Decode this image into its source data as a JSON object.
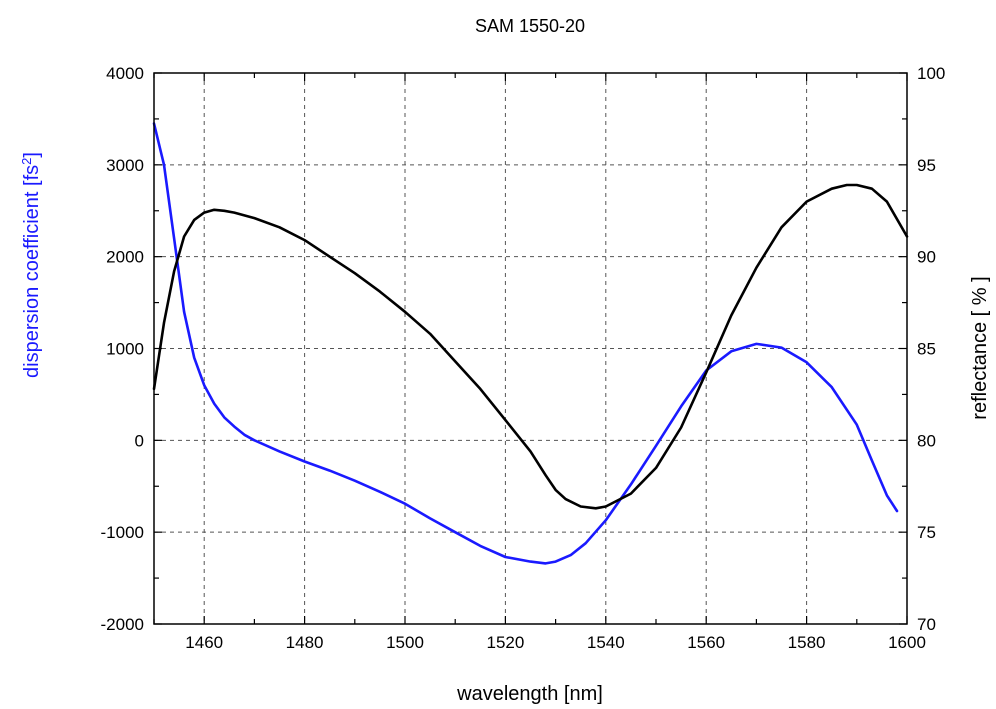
{
  "chart_data": {
    "type": "line",
    "title": "SAM 1550-20",
    "xlabel": "wavelength [nm]",
    "ylabel_left": "dispersion coefficient [fs",
    "ylabel_left_sup": "2",
    "ylabel_left_end": "]",
    "ylabel_right": "reflectance [ % ]",
    "xlim": [
      1450,
      1600
    ],
    "ylim_left": [
      -2000,
      4000
    ],
    "ylim_right": [
      70,
      100
    ],
    "x_ticks": [
      1460,
      1480,
      1500,
      1520,
      1540,
      1560,
      1580,
      1600
    ],
    "y_left_ticks": [
      -2000,
      -1000,
      0,
      1000,
      2000,
      3000,
      4000
    ],
    "y_right_ticks": [
      70,
      75,
      80,
      85,
      90,
      95,
      100
    ],
    "grid": true,
    "colors": {
      "dispersion": "#1a1aff",
      "reflectance": "#000000",
      "left_axis_title": "#1a1aff",
      "grid": "#555555"
    },
    "series": [
      {
        "axis": "left",
        "color": "#1a1aff",
        "x": [
          1450,
          1452,
          1454,
          1456,
          1458,
          1460,
          1462,
          1464,
          1466,
          1468,
          1470,
          1475,
          1480,
          1485,
          1490,
          1495,
          1500,
          1505,
          1510,
          1515,
          1520,
          1525,
          1528,
          1530,
          1533,
          1536,
          1540,
          1545,
          1550,
          1555,
          1560,
          1565,
          1570,
          1575,
          1580,
          1585,
          1590,
          1593,
          1596,
          1598
        ],
        "values": [
          3450,
          3000,
          2200,
          1400,
          900,
          600,
          400,
          250,
          150,
          60,
          0,
          -120,
          -230,
          -330,
          -440,
          -560,
          -690,
          -850,
          -1000,
          -1150,
          -1270,
          -1320,
          -1340,
          -1320,
          -1250,
          -1120,
          -870,
          -480,
          -60,
          370,
          760,
          970,
          1050,
          1010,
          850,
          580,
          170,
          -220,
          -600,
          -770
        ]
      },
      {
        "axis": "right",
        "color": "#000000",
        "x": [
          1450,
          1452,
          1454,
          1456,
          1458,
          1460,
          1462,
          1464,
          1466,
          1470,
          1475,
          1480,
          1485,
          1490,
          1495,
          1500,
          1505,
          1510,
          1515,
          1520,
          1525,
          1528,
          1530,
          1532,
          1535,
          1538,
          1540,
          1545,
          1550,
          1555,
          1560,
          1565,
          1570,
          1575,
          1580,
          1585,
          1588,
          1590,
          1593,
          1596,
          1600
        ],
        "values": [
          82.8,
          86.4,
          89.2,
          91.1,
          92.0,
          92.4,
          92.55,
          92.5,
          92.4,
          92.1,
          91.6,
          90.9,
          90.0,
          89.1,
          88.1,
          87.0,
          85.8,
          84.3,
          82.8,
          81.1,
          79.4,
          78.1,
          77.3,
          76.8,
          76.4,
          76.3,
          76.4,
          77.1,
          78.5,
          80.7,
          83.7,
          86.8,
          89.4,
          91.6,
          93.0,
          93.7,
          93.9,
          93.9,
          93.7,
          93.0,
          91.1
        ]
      }
    ]
  }
}
